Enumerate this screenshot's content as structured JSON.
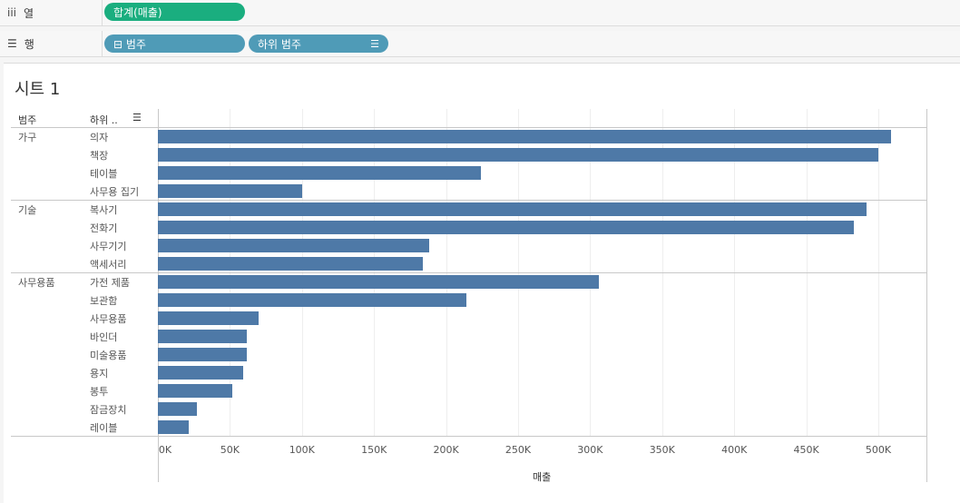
{
  "shelves": {
    "columns": {
      "icon": "iii",
      "label": "열",
      "pill": "합계(매출)"
    },
    "rows": {
      "icon": "☰",
      "label": "행",
      "pills": [
        "⊟ 범주",
        "하위 범주"
      ]
    }
  },
  "sheet": {
    "title": "시트 1"
  },
  "headers": {
    "category": "범주",
    "subcategory": "하위 ..",
    "sort_icon": "sort-descending-icon"
  },
  "colors": {
    "bar": "#4e79a7",
    "columns_pill": "#1aae7f",
    "rows_pill": "#4f9bb7"
  },
  "chart_data": {
    "type": "bar",
    "orientation": "horizontal",
    "xlabel": "매출",
    "xlim": [
      0,
      535000
    ],
    "x_ticks": [
      0,
      50000,
      100000,
      150000,
      200000,
      250000,
      300000,
      350000,
      400000,
      450000,
      500000
    ],
    "x_tick_labels": [
      "0K",
      "50K",
      "100K",
      "150K",
      "200K",
      "250K",
      "300K",
      "350K",
      "400K",
      "450K",
      "500K"
    ],
    "groups": [
      {
        "name": "가구",
        "items": [
          {
            "label": "의자",
            "value": 509000
          },
          {
            "label": "책장",
            "value": 500000
          },
          {
            "label": "테이블",
            "value": 224000
          },
          {
            "label": "사무용 집기",
            "value": 100000
          }
        ]
      },
      {
        "name": "기술",
        "items": [
          {
            "label": "복사기",
            "value": 492000
          },
          {
            "label": "전화기",
            "value": 483000
          },
          {
            "label": "사무기기",
            "value": 188000
          },
          {
            "label": "액세서리",
            "value": 184000
          }
        ]
      },
      {
        "name": "사무용품",
        "items": [
          {
            "label": "가전 제품",
            "value": 306000
          },
          {
            "label": "보관함",
            "value": 214000
          },
          {
            "label": "사무용품",
            "value": 70000
          },
          {
            "label": "바인더",
            "value": 62000
          },
          {
            "label": "미술용품",
            "value": 61500
          },
          {
            "label": "용지",
            "value": 59000
          },
          {
            "label": "봉투",
            "value": 51500
          },
          {
            "label": "잠금장치",
            "value": 27000
          },
          {
            "label": "레이블",
            "value": 21500
          }
        ]
      }
    ]
  }
}
